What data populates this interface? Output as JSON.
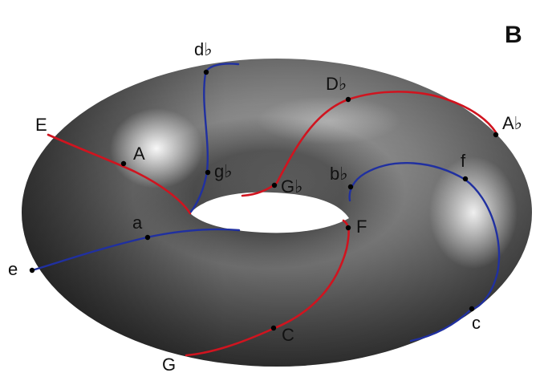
{
  "figure": {
    "panel_letter": "B"
  },
  "palette": {
    "red_path": "#d0141f",
    "blue_path": "#2030a0",
    "torus_dark": "#3a3a3a",
    "torus_light": "#e8e8e8"
  },
  "notes": [
    {
      "id": "E",
      "label": "E"
    },
    {
      "id": "A",
      "label": "A"
    },
    {
      "id": "db",
      "label": "d♭"
    },
    {
      "id": "gb",
      "label": "g♭"
    },
    {
      "id": "Db",
      "label": "D♭"
    },
    {
      "id": "Ab",
      "label": "A♭"
    },
    {
      "id": "Gb",
      "label": "G♭"
    },
    {
      "id": "bb",
      "label": "b♭"
    },
    {
      "id": "f",
      "label": "f"
    },
    {
      "id": "a",
      "label": "a"
    },
    {
      "id": "F",
      "label": "F"
    },
    {
      "id": "e",
      "label": "e"
    },
    {
      "id": "C",
      "label": "C"
    },
    {
      "id": "c",
      "label": "c"
    },
    {
      "id": "G",
      "label": "G"
    }
  ]
}
